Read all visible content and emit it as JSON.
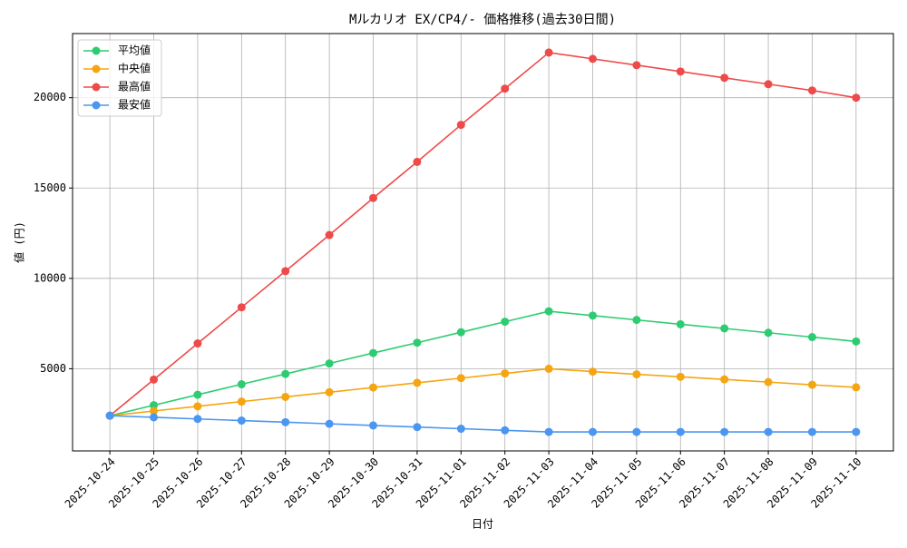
{
  "chart_data": {
    "type": "line",
    "title": "Mルカリオ EX/CP4/- 価格推移(過去30日間)",
    "x_label": "日付",
    "y_label": "値 (円)",
    "categories": [
      "2025-10-24",
      "2025-10-25",
      "2025-10-26",
      "2025-10-27",
      "2025-10-28",
      "2025-10-29",
      "2025-10-30",
      "2025-10-31",
      "2025-11-01",
      "2025-11-02",
      "2025-11-03",
      "2025-11-04",
      "2025-11-05",
      "2025-11-06",
      "2025-11-07",
      "2025-11-08",
      "2025-11-09",
      "2025-11-10"
    ],
    "series": [
      {
        "name": "平均値",
        "color": "#2ecc71",
        "values": [
          2400,
          2980,
          3560,
          4140,
          4710,
          5290,
          5870,
          6440,
          7020,
          7600,
          8180,
          7940,
          7700,
          7460,
          7230,
          6990,
          6750,
          6510
        ]
      },
      {
        "name": "中央値",
        "color": "#f5a511",
        "values": [
          2400,
          2660,
          2920,
          3180,
          3440,
          3700,
          3960,
          4220,
          4480,
          4740,
          5000,
          4840,
          4690,
          4550,
          4410,
          4260,
          4110,
          3970
        ]
      },
      {
        "name": "最高値",
        "color": "#ef4a4a",
        "values": [
          2400,
          4400,
          6400,
          8400,
          10400,
          12400,
          14450,
          16450,
          18500,
          20500,
          22500,
          22150,
          21800,
          21450,
          21100,
          20750,
          20400,
          20000
        ]
      },
      {
        "name": "最安値",
        "color": "#4b96f0",
        "values": [
          2400,
          2310,
          2220,
          2130,
          2040,
          1950,
          1860,
          1770,
          1680,
          1590,
          1500,
          1500,
          1500,
          1500,
          1500,
          1500,
          1500,
          1500
        ]
      }
    ],
    "ylim": [
      450,
      23550
    ],
    "yticks": [
      5000,
      10000,
      15000,
      20000
    ],
    "grid": true,
    "legend": "upper left"
  }
}
